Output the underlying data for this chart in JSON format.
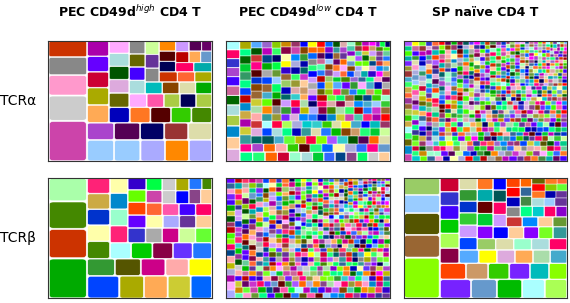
{
  "col_titles": [
    "PEC CD49d$^{high}$ CD4 T",
    "PEC CD49d$^{low}$ CD4 T",
    "SP naïve CD4 T"
  ],
  "row_labels": [
    "TCRα",
    "TCRβ"
  ],
  "title_fontsize": 9,
  "row_label_fontsize": 10,
  "fig_bg": "#ffffff",
  "panel_configs": [
    {
      "n_clones": 60,
      "alpha": 0.6,
      "seed": 1001
    },
    {
      "n_clones": 300,
      "alpha": 0.25,
      "seed": 1002
    },
    {
      "n_clones": 800,
      "alpha": 0.15,
      "seed": 1003
    },
    {
      "n_clones": 55,
      "alpha": 0.55,
      "seed": 1004
    },
    {
      "n_clones": 700,
      "alpha": 0.15,
      "seed": 1005
    },
    {
      "n_clones": 80,
      "alpha": 0.5,
      "seed": 1006
    }
  ]
}
